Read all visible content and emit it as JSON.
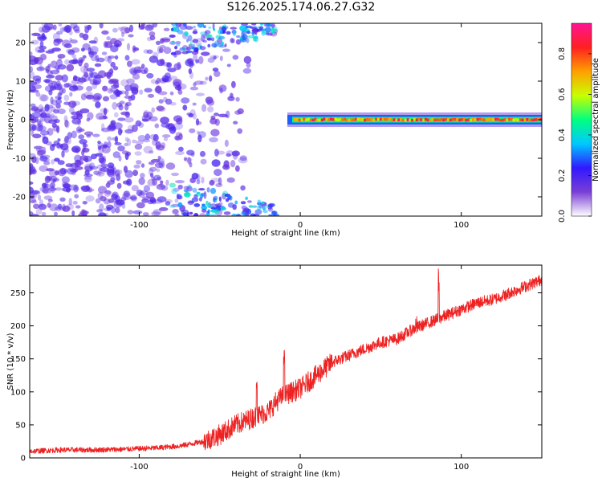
{
  "figure": {
    "title": "S126.2025.174.06.27.G32"
  },
  "chart_data": [
    {
      "type": "heatmap",
      "xlabel": "Height of straight line (km)",
      "ylabel": "Frequency (Hz)",
      "xlim": [
        -168,
        150
      ],
      "ylim": [
        -25,
        25
      ],
      "x_ticks": [
        -100,
        0,
        100
      ],
      "y_ticks": [
        -20,
        -10,
        0,
        10,
        20
      ],
      "x_tick_labels": [
        "-100",
        "0",
        "100"
      ],
      "y_tick_labels": [
        "-20",
        "-10",
        "0",
        "10",
        "20"
      ],
      "colorbar": {
        "label": "Normalized spectral amplitude",
        "range": [
          0,
          0.95
        ],
        "ticks": [
          0.0,
          0.2,
          0.4,
          0.6,
          0.8
        ],
        "tick_labels": [
          "0.0",
          "0.2",
          "0.4",
          "0.6",
          "0.8"
        ],
        "colors": [
          "#ffffff",
          "#7a3fd6",
          "#3018ff",
          "#00c8ff",
          "#00ff80",
          "#c8ff00",
          "#ffa000",
          "#ff2020",
          "#ff1493"
        ]
      },
      "features": [
        {
          "name": "noise region",
          "x_range": [
            -168,
            -70
          ],
          "freq_range": [
            -25,
            25
          ],
          "amplitude": 0.1
        },
        {
          "name": "signal line",
          "x_range": [
            -8,
            150
          ],
          "freq": 0,
          "amplitude": 0.9
        }
      ]
    },
    {
      "type": "line",
      "xlabel": "Height of straight line (km)",
      "ylabel": "SNR (10 * v/v)",
      "xlim": [
        -168,
        150
      ],
      "ylim": [
        0,
        292
      ],
      "x_ticks": [
        -100,
        0,
        100
      ],
      "y_ticks": [
        0,
        50,
        100,
        150,
        200,
        250
      ],
      "x_tick_labels": [
        "-100",
        "0",
        "100"
      ],
      "y_tick_labels": [
        "0",
        "50",
        "100",
        "150",
        "200",
        "250"
      ],
      "color": "#ee2222",
      "series": [
        {
          "x": [
            -168,
            -150,
            -130,
            -110,
            -90,
            -75,
            -60,
            -50,
            -40,
            -30,
            -25,
            -20,
            -15,
            -10,
            -5,
            0,
            5,
            10,
            15,
            20,
            25,
            30,
            40,
            50,
            60,
            70,
            80,
            90,
            100,
            110,
            120,
            130,
            140,
            150
          ],
          "values": [
            10,
            12,
            12,
            13,
            15,
            18,
            25,
            35,
            50,
            60,
            65,
            70,
            85,
            95,
            100,
            105,
            115,
            125,
            135,
            145,
            150,
            155,
            165,
            175,
            180,
            195,
            205,
            215,
            225,
            235,
            240,
            250,
            260,
            270
          ]
        }
      ],
      "spikes": [
        {
          "x": -27,
          "value": 125
        },
        {
          "x": -10,
          "value": 165
        },
        {
          "x": 72,
          "value": 215
        },
        {
          "x": 86,
          "value": 290
        },
        {
          "x": 128,
          "value": 265
        }
      ]
    }
  ]
}
